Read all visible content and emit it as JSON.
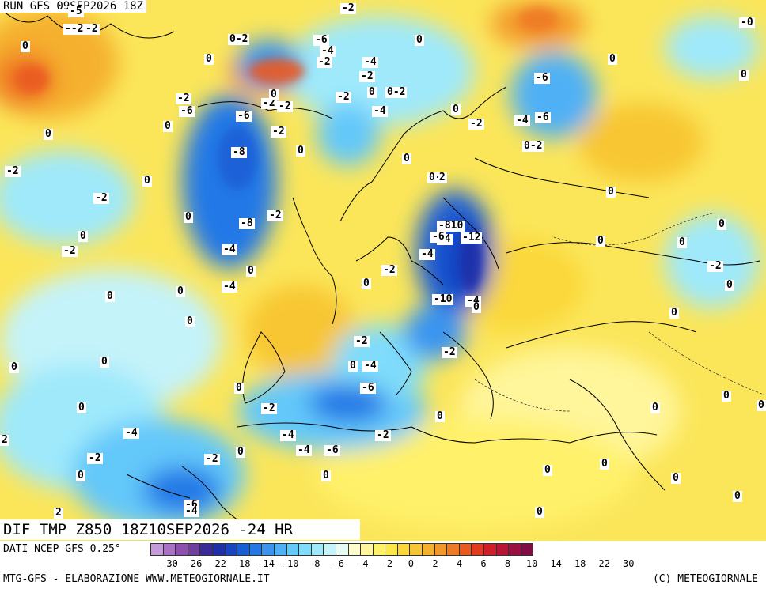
{
  "run_title": "RUN GFS 09SEP2026 18Z",
  "map_title": "DIF TMP Z850 18Z10SEP2026 -24 HR",
  "source": "DATI NCEP GFS 0.25°",
  "credits": "MTG-GFS - ELABORAZIONE WWW.METEOGIORNALE.IT",
  "copyright": "(C) METEOGIORNALE",
  "legend": {
    "colors": [
      "#c49ad8",
      "#aa72c6",
      "#8e4fb1",
      "#6f3f9c",
      "#3c2a9a",
      "#1f2fa8",
      "#1944c2",
      "#1a5ed6",
      "#2478e6",
      "#3a94f0",
      "#4fb0f6",
      "#63c8fa",
      "#7fdcfb",
      "#9fe9fb",
      "#c4f3fa",
      "#e6fbf4",
      "#fffccc",
      "#fff59a",
      "#fff16a",
      "#fde84a",
      "#fbd83a",
      "#f8c632",
      "#f5b02e",
      "#f3972a",
      "#ef7a25",
      "#ea5a20",
      "#e23a1e",
      "#d11f2a",
      "#b81436",
      "#9d0f40",
      "#820c44"
    ],
    "tick_labels": [
      "-30",
      "-26",
      "-22",
      "-18",
      "-14",
      "-10",
      "-8",
      "-6",
      "-4",
      "-2",
      "0",
      "2",
      "4",
      "6",
      "8",
      "10",
      "14",
      "18",
      "22",
      "30"
    ]
  },
  "map_labels": [
    {
      "text": "-5"
    },
    {
      "text": "--2"
    },
    {
      "text": "-2"
    },
    {
      "text": "0"
    },
    {
      "text": "0-2"
    },
    {
      "text": "-6"
    },
    {
      "text": "-4"
    },
    {
      "text": "-2"
    },
    {
      "text": "0"
    },
    {
      "text": "-2"
    },
    {
      "text": "0"
    },
    {
      "text": "-0"
    },
    {
      "text": "0"
    },
    {
      "text": "0"
    },
    {
      "text": "-4"
    },
    {
      "text": "-2"
    },
    {
      "text": "0-2"
    },
    {
      "text": "-2"
    },
    {
      "text": "-6"
    },
    {
      "text": "0"
    },
    {
      "text": "-2"
    },
    {
      "text": "-6"
    },
    {
      "text": "-2"
    },
    {
      "text": "-2"
    },
    {
      "text": "0"
    },
    {
      "text": "-2"
    },
    {
      "text": "-4"
    },
    {
      "text": "-6"
    },
    {
      "text": "-4"
    },
    {
      "text": "-6"
    },
    {
      "text": "0"
    },
    {
      "text": "-2"
    },
    {
      "text": "0-2"
    },
    {
      "text": "0"
    },
    {
      "text": "0"
    },
    {
      "text": "0"
    },
    {
      "text": "-8"
    },
    {
      "text": "0"
    },
    {
      "text": "-2"
    },
    {
      "text": "0"
    },
    {
      "text": "-2"
    },
    {
      "text": "-2"
    },
    {
      "text": "0"
    },
    {
      "text": "-2"
    },
    {
      "text": "0"
    },
    {
      "text": "0"
    },
    {
      "text": "-8"
    },
    {
      "text": "-2"
    },
    {
      "text": "-810"
    },
    {
      "text": "0"
    },
    {
      "text": "-4"
    },
    {
      "text": "0"
    },
    {
      "text": "-6"
    },
    {
      "text": "-12"
    },
    {
      "text": "-2"
    },
    {
      "text": "-4"
    },
    {
      "text": "0"
    },
    {
      "text": "0"
    },
    {
      "text": "-4"
    },
    {
      "text": "-2"
    },
    {
      "text": "0"
    },
    {
      "text": "-2"
    },
    {
      "text": "0"
    },
    {
      "text": "0"
    },
    {
      "text": "-4"
    },
    {
      "text": "-10"
    },
    {
      "text": "-4"
    },
    {
      "text": "0"
    },
    {
      "text": "0"
    },
    {
      "text": "0"
    },
    {
      "text": "0"
    },
    {
      "text": "0"
    },
    {
      "text": "-2"
    },
    {
      "text": "-2"
    },
    {
      "text": "0"
    },
    {
      "text": "0"
    },
    {
      "text": "-4"
    },
    {
      "text": "0"
    },
    {
      "text": "-6"
    },
    {
      "text": "0"
    },
    {
      "text": "0"
    },
    {
      "text": "0"
    },
    {
      "text": "-2"
    },
    {
      "text": "0"
    },
    {
      "text": "0"
    },
    {
      "text": "-4"
    },
    {
      "text": "-4"
    },
    {
      "text": "-2"
    },
    {
      "text": "2"
    },
    {
      "text": "-4"
    },
    {
      "text": "-6"
    },
    {
      "text": "-2"
    },
    {
      "text": "0"
    },
    {
      "text": "-2"
    },
    {
      "text": "0"
    },
    {
      "text": "0"
    },
    {
      "text": "0"
    },
    {
      "text": "0"
    },
    {
      "text": "2"
    },
    {
      "text": "-6"
    },
    {
      "text": "-4"
    },
    {
      "text": "0"
    },
    {
      "text": "0"
    },
    {
      "text": "0"
    },
    {
      "text": "0"
    }
  ]
}
